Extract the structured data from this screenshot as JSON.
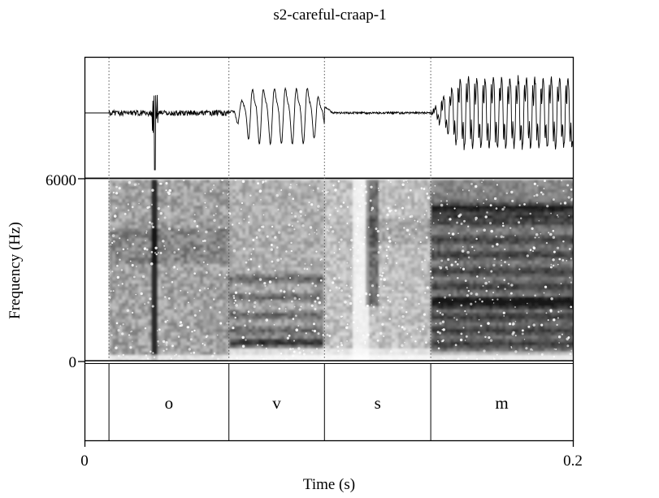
{
  "chart_data": {
    "type": "spectrogram",
    "title": "s2-careful-craap-1",
    "xlabel": "Time (s)",
    "ylabel": "Frequency (Hz)",
    "xlim": [
      0,
      0.2
    ],
    "ylim": [
      0,
      6000
    ],
    "x_ticks": [
      {
        "value": 0,
        "label": "0"
      },
      {
        "value": 0.2,
        "label": "0.2"
      }
    ],
    "y_ticks": [
      {
        "value": 0,
        "label": "0"
      },
      {
        "value": 6000,
        "label": "6000"
      }
    ],
    "segments": [
      {
        "label": "o",
        "start": 0.0097,
        "end": 0.0589
      },
      {
        "label": "v",
        "start": 0.0589,
        "end": 0.0981
      },
      {
        "label": "s",
        "start": 0.0981,
        "end": 0.1417
      },
      {
        "label": "m",
        "start": 0.1417,
        "end": 0.2
      }
    ],
    "colors": {
      "ink": "#000000",
      "background": "#ffffff",
      "boundary": "#555555"
    }
  }
}
